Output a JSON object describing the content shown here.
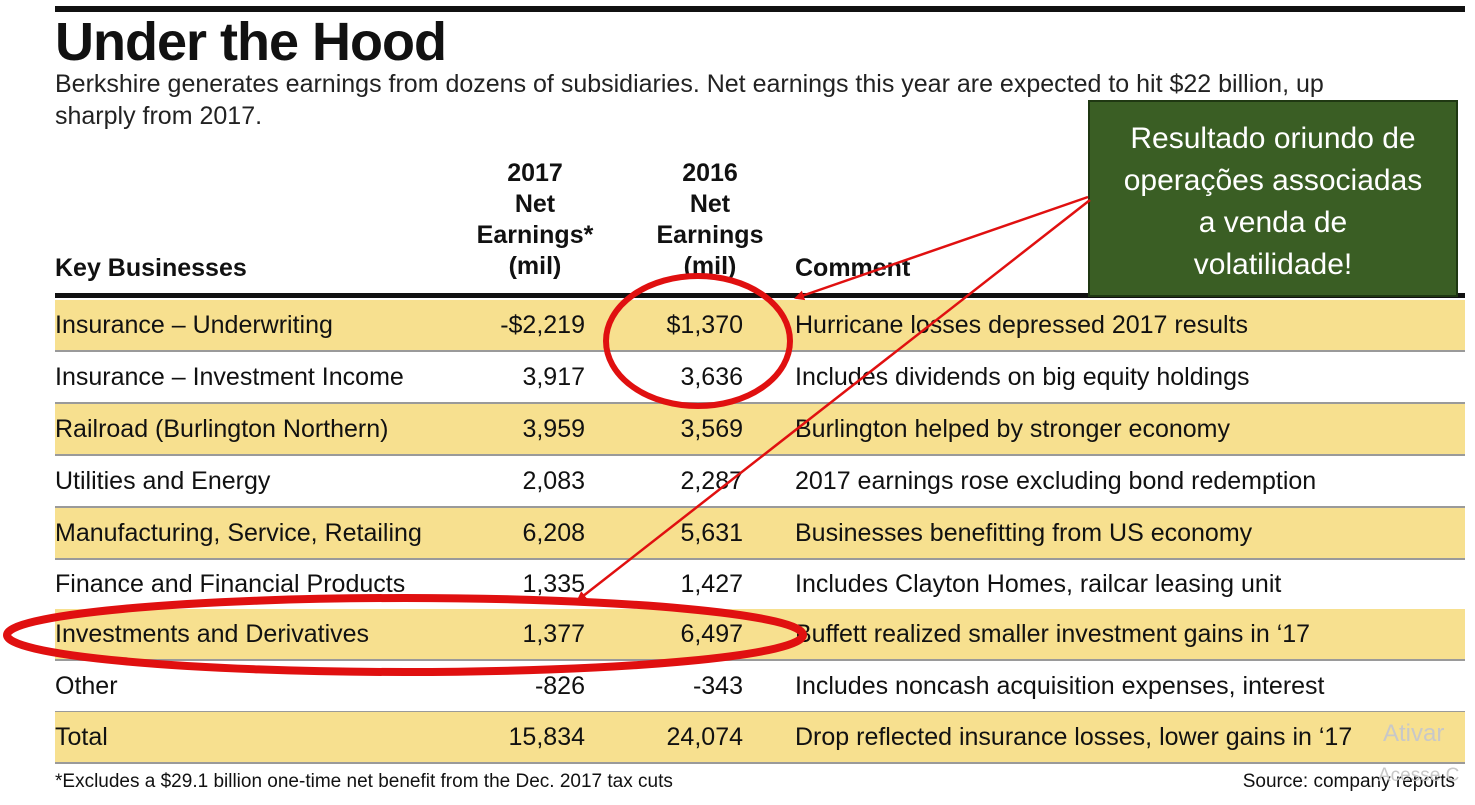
{
  "chart_data": {
    "type": "table",
    "title": "Under the Hood",
    "subtitle": "Berkshire generates earnings from dozens of subsidiaries. Net earnings this year are expected to hit $22 billion, up sharply from 2017.",
    "columns": {
      "key": "Key Businesses",
      "y2017": [
        "2017",
        "Net",
        "Earnings*",
        "(mil)"
      ],
      "y2016": [
        "2016",
        "Net",
        "Earnings",
        "(mil)"
      ],
      "comment": "Comment"
    },
    "rows": [
      {
        "name": "Insurance – Underwriting",
        "v2017": "-$2,219",
        "v2016": "$1,370",
        "comment": "Hurricane losses depressed 2017 results"
      },
      {
        "name": "Insurance – Investment Income",
        "v2017": "3,917",
        "v2016": "3,636",
        "comment": "Includes dividends on big equity holdings"
      },
      {
        "name": "Railroad (Burlington Northern)",
        "v2017": "3,959",
        "v2016": "3,569",
        "comment": "Burlington helped by stronger economy"
      },
      {
        "name": "Utilities and Energy",
        "v2017": "2,083",
        "v2016": "2,287",
        "comment": "2017 earnings rose excluding bond redemption"
      },
      {
        "name": "Manufacturing, Service, Retailing",
        "v2017": "6,208",
        "v2016": "5,631",
        "comment": "Businesses benefitting from US economy"
      },
      {
        "name": "Finance and Financial Products",
        "v2017": "1,335",
        "v2016": "1,427",
        "comment": "Includes Clayton Homes, railcar leasing unit"
      },
      {
        "name": "Investments and Derivatives",
        "v2017": "1,377",
        "v2016": "6,497",
        "comment": "Buffett realized smaller investment gains in ‘17"
      },
      {
        "name": "Other",
        "v2017": "-826",
        "v2016": "-343",
        "comment": "Includes noncash acquisition expenses, interest"
      },
      {
        "name": "Total",
        "v2017": "15,834",
        "v2016": "24,074",
        "comment": "Drop reflected insurance losses, lower gains in ‘17"
      }
    ],
    "footnote": "*Excludes a $29.1 billion one-time net benefit from the Dec. 2017 tax cuts",
    "source": "Source: company reports"
  },
  "callout": {
    "lines": [
      "Resultado oriundo de",
      "operações associadas",
      "a venda de",
      "volatilidade!"
    ]
  },
  "watermark": {
    "line1": "Ativar",
    "line2": "Acesse C"
  },
  "colors": {
    "row_shade": "#f7e08f",
    "callout_bg": "#3a5e24",
    "annotation": "#e01010"
  }
}
